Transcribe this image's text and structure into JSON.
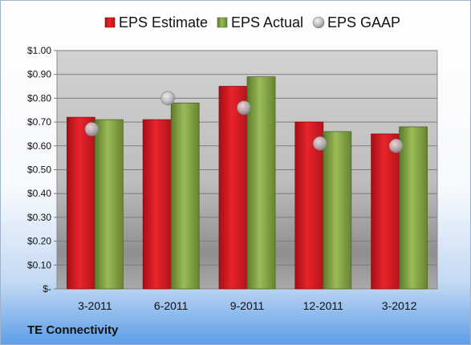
{
  "chart_data": {
    "type": "bar",
    "categories": [
      "3-2011",
      "6-2011",
      "9-2011",
      "12-2011",
      "3-2012"
    ],
    "series": [
      {
        "name": "EPS Estimate",
        "type": "bar",
        "values": [
          0.72,
          0.71,
          0.85,
          0.7,
          0.65
        ],
        "color": "#c8161d"
      },
      {
        "name": "EPS Actual",
        "type": "bar",
        "values": [
          0.71,
          0.78,
          0.89,
          0.66,
          0.68
        ],
        "color": "#77943b"
      },
      {
        "name": "EPS GAAP",
        "type": "scatter",
        "values": [
          0.67,
          0.8,
          0.76,
          0.61,
          0.6
        ],
        "color": "#9fa3a8"
      }
    ],
    "ylim": [
      0,
      1.0
    ],
    "yticks": [
      0,
      0.1,
      0.2,
      0.3,
      0.4,
      0.5,
      0.6,
      0.7,
      0.8,
      0.9,
      1.0
    ],
    "ytick_labels": [
      "$-",
      "$0.10",
      "$0.20",
      "$0.30",
      "$0.40",
      "$0.50",
      "$0.60",
      "$0.70",
      "$0.80",
      "$0.90",
      "$1.00"
    ],
    "grid": true,
    "legend_position": "top"
  },
  "company": "TE Connectivity"
}
